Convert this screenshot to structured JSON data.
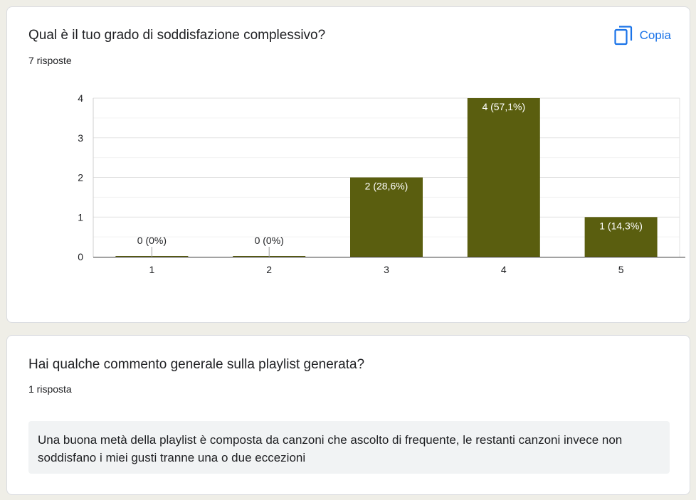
{
  "question1": {
    "title": "Qual è il tuo grado di soddisfazione complessivo?",
    "count": "7 risposte",
    "copy_label": "Copia",
    "copy_icon": "copy-icon"
  },
  "chart_data": {
    "type": "bar",
    "categories": [
      "1",
      "2",
      "3",
      "4",
      "5"
    ],
    "values": [
      0,
      0,
      2,
      4,
      1
    ],
    "data_labels": [
      "0 (0%)",
      "0 (0%)",
      "2 (28,6%)",
      "4 (57,1%)",
      "1 (14,3%)"
    ],
    "y_ticks": [
      "0",
      "1",
      "2",
      "3",
      "4"
    ],
    "ylim": [
      0,
      4
    ],
    "grid": true,
    "bar_color": "#5a5e0f"
  },
  "question2": {
    "title": "Hai qualche commento generale sulla playlist generata?",
    "count": "1 risposta",
    "responses": [
      "Una buona metà della playlist è composta da canzoni che ascolto di frequente, le restanti canzoni invece non soddisfano i miei gusti tranne una o due eccezioni"
    ]
  },
  "colors": {
    "accent": "#1a73e8",
    "background": "#efeee7"
  }
}
